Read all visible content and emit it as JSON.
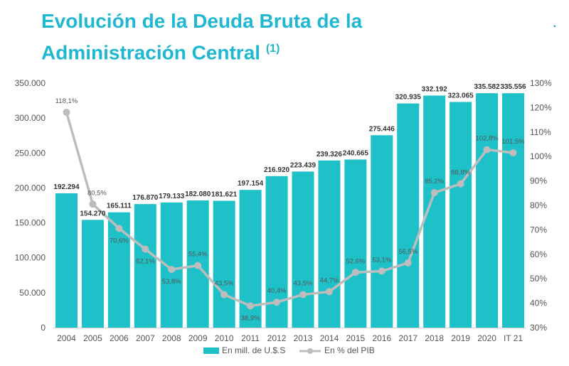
{
  "title": {
    "line1": "Evolución de la Deuda Bruta de la",
    "line2": "Administración Central",
    "note": "(1)"
  },
  "colors": {
    "title": "#1fb8d0",
    "bar": "#1fc1c8",
    "line": "#bdbdbd",
    "axis_text": "#555555",
    "label_text": "#333333"
  },
  "chart_data": {
    "type": "bar",
    "categories": [
      "2004",
      "2005",
      "2006",
      "2007",
      "2008",
      "2009",
      "2010",
      "2011",
      "2012",
      "2013",
      "2014",
      "2015",
      "2016",
      "2017",
      "2018",
      "2019",
      "2020",
      "IT 21"
    ],
    "series": [
      {
        "name": "En mill. de U.$.S",
        "type": "bar",
        "axis": "left",
        "values": [
          192294,
          154270,
          165111,
          176870,
          179133,
          182080,
          181621,
          197154,
          216920,
          223439,
          239326,
          240665,
          275446,
          320935,
          332192,
          323065,
          335582,
          335556
        ],
        "labels": [
          "192.294",
          "154.270",
          "165.111",
          "176.870",
          "179.133",
          "182.080",
          "181.621",
          "197.154",
          "216.920",
          "223.439",
          "239.326",
          "240.665",
          "275.446",
          "320.935",
          "332.192",
          "323.065",
          "335.582",
          "335.556"
        ]
      },
      {
        "name": "En % del PIB",
        "type": "line",
        "axis": "right",
        "values": [
          118.1,
          80.5,
          70.6,
          62.1,
          53.8,
          55.4,
          43.5,
          38.9,
          40.4,
          43.5,
          44.7,
          52.6,
          53.1,
          56.5,
          85.2,
          88.8,
          102.8,
          101.5
        ],
        "labels": [
          "118,1%",
          "80,5%",
          "70,6%",
          "62,1%",
          "53,8%",
          "55,4%",
          "43,5%",
          "38,9%",
          "40,4%",
          "43,5%",
          "44,7%",
          "52,6%",
          "53,1%",
          "56,5%",
          "85,2%",
          "88,8%",
          "102,8%",
          "101,5%"
        ]
      }
    ],
    "y_left": {
      "ylim": [
        0,
        350000
      ],
      "ticks": [
        0,
        50000,
        100000,
        150000,
        200000,
        250000,
        300000,
        350000
      ],
      "tick_labels": [
        "0",
        "50.000",
        "100.000",
        "150.000",
        "200.000",
        "250.000",
        "300.000",
        "350.000"
      ]
    },
    "y_right": {
      "ylim": [
        30,
        130
      ],
      "ticks": [
        30,
        40,
        50,
        60,
        70,
        80,
        90,
        100,
        110,
        120,
        130
      ],
      "tick_labels": [
        "30%",
        "40%",
        "50%",
        "60%",
        "70%",
        "80%",
        "90%",
        "100%",
        "110%",
        "120%",
        "130%"
      ]
    },
    "legend_position": "bottom-center",
    "grid": false
  }
}
